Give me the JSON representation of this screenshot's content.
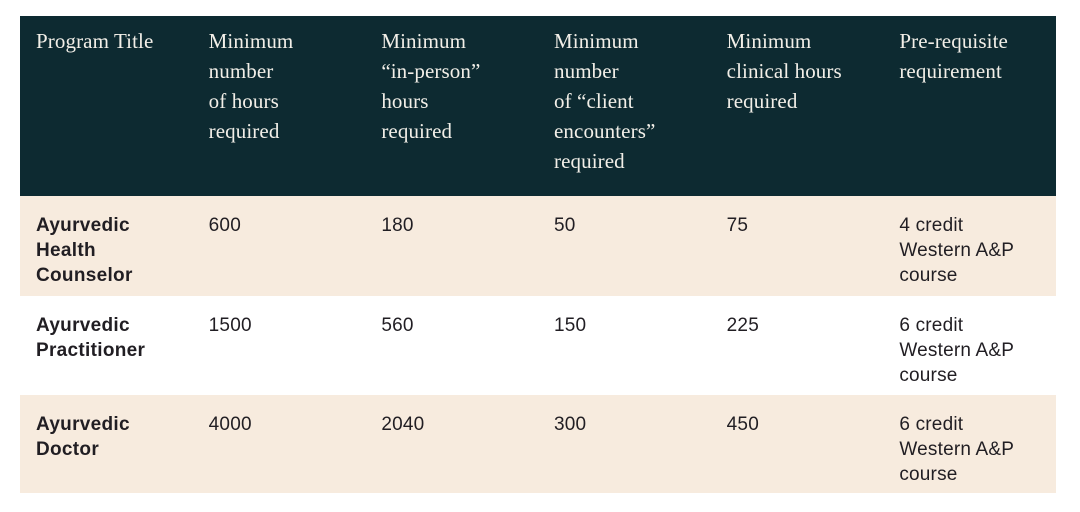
{
  "table": {
    "columns": [
      {
        "label": "Program Title"
      },
      {
        "label": "Minimum\nnumber\nof hours\nrequired"
      },
      {
        "label": "Minimum\n“in-person”\nhours\nrequired"
      },
      {
        "label": "Minimum\nnumber\nof “client\nencounters”\nrequired"
      },
      {
        "label": "Minimum\nclinical hours\nrequired"
      },
      {
        "label": "Pre-requisite\nrequirement"
      }
    ],
    "rows": [
      {
        "cells": [
          "Ayurvedic Health Counselor",
          "600",
          "180",
          "50",
          "75",
          "4 credit Western A&P course"
        ]
      },
      {
        "cells": [
          "Ayurvedic Practitioner",
          "1500",
          "560",
          "150",
          "225",
          "6 credit Western A&P course"
        ]
      },
      {
        "cells": [
          "Ayurvedic Doctor",
          "4000",
          "2040",
          "300",
          "450",
          "6 credit Western A&P course"
        ]
      }
    ],
    "colors": {
      "header_bg": "#0d2a31",
      "header_text": "#f2efe8",
      "row_alt_bg": "#f7ebde",
      "row_bg": "#ffffff",
      "body_text": "#211e23"
    }
  }
}
